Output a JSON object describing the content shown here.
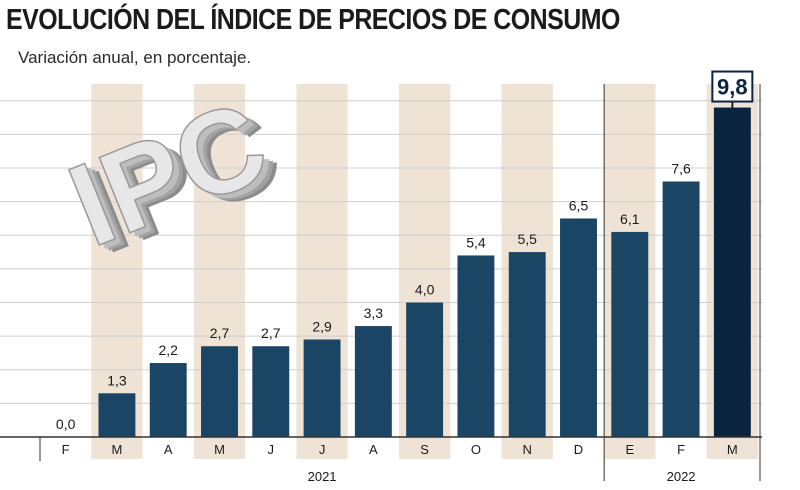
{
  "header": {
    "title": "EVOLUCIÓN DEL ÍNDICE DE PRECIOS DE CONSUMO",
    "subtitle": "Variación anual, en porcentaje."
  },
  "decoration": {
    "logo_text": "IPC"
  },
  "colors": {
    "bar": "#1b4565",
    "bar_highlight": "#0a2440",
    "stripe": "#eee3d4",
    "grid": "#cfcfcf",
    "axis": "#333333"
  },
  "chart_data": {
    "type": "bar",
    "title": "EVOLUCIÓN DEL ÍNDICE DE PRECIOS DE CONSUMO",
    "subtitle": "Variación anual, en porcentaje.",
    "categories": [
      "F",
      "M",
      "A",
      "M",
      "J",
      "J",
      "A",
      "S",
      "O",
      "N",
      "D",
      "E",
      "F",
      "M"
    ],
    "values": [
      0.0,
      1.3,
      2.2,
      2.7,
      2.7,
      2.9,
      3.3,
      4.0,
      5.4,
      5.5,
      6.5,
      6.1,
      7.6,
      9.8
    ],
    "value_labels": [
      "0,0",
      "1,3",
      "2,2",
      "2,7",
      "2,7",
      "2,9",
      "3,3",
      "4,0",
      "5,4",
      "5,5",
      "6,5",
      "6,1",
      "7,6",
      "9,8"
    ],
    "year_groups": [
      {
        "label": "2021",
        "start": 0,
        "end": 10
      },
      {
        "label": "2022",
        "start": 11,
        "end": 13
      }
    ],
    "highlight_index": 13,
    "ylim": [
      0,
      10.5
    ],
    "y_gridlines": [
      0,
      1,
      2,
      3,
      4,
      5,
      6,
      7,
      8,
      9,
      10
    ],
    "alternating_stripes": true,
    "grid": true,
    "xlabel": "",
    "ylabel": ""
  }
}
